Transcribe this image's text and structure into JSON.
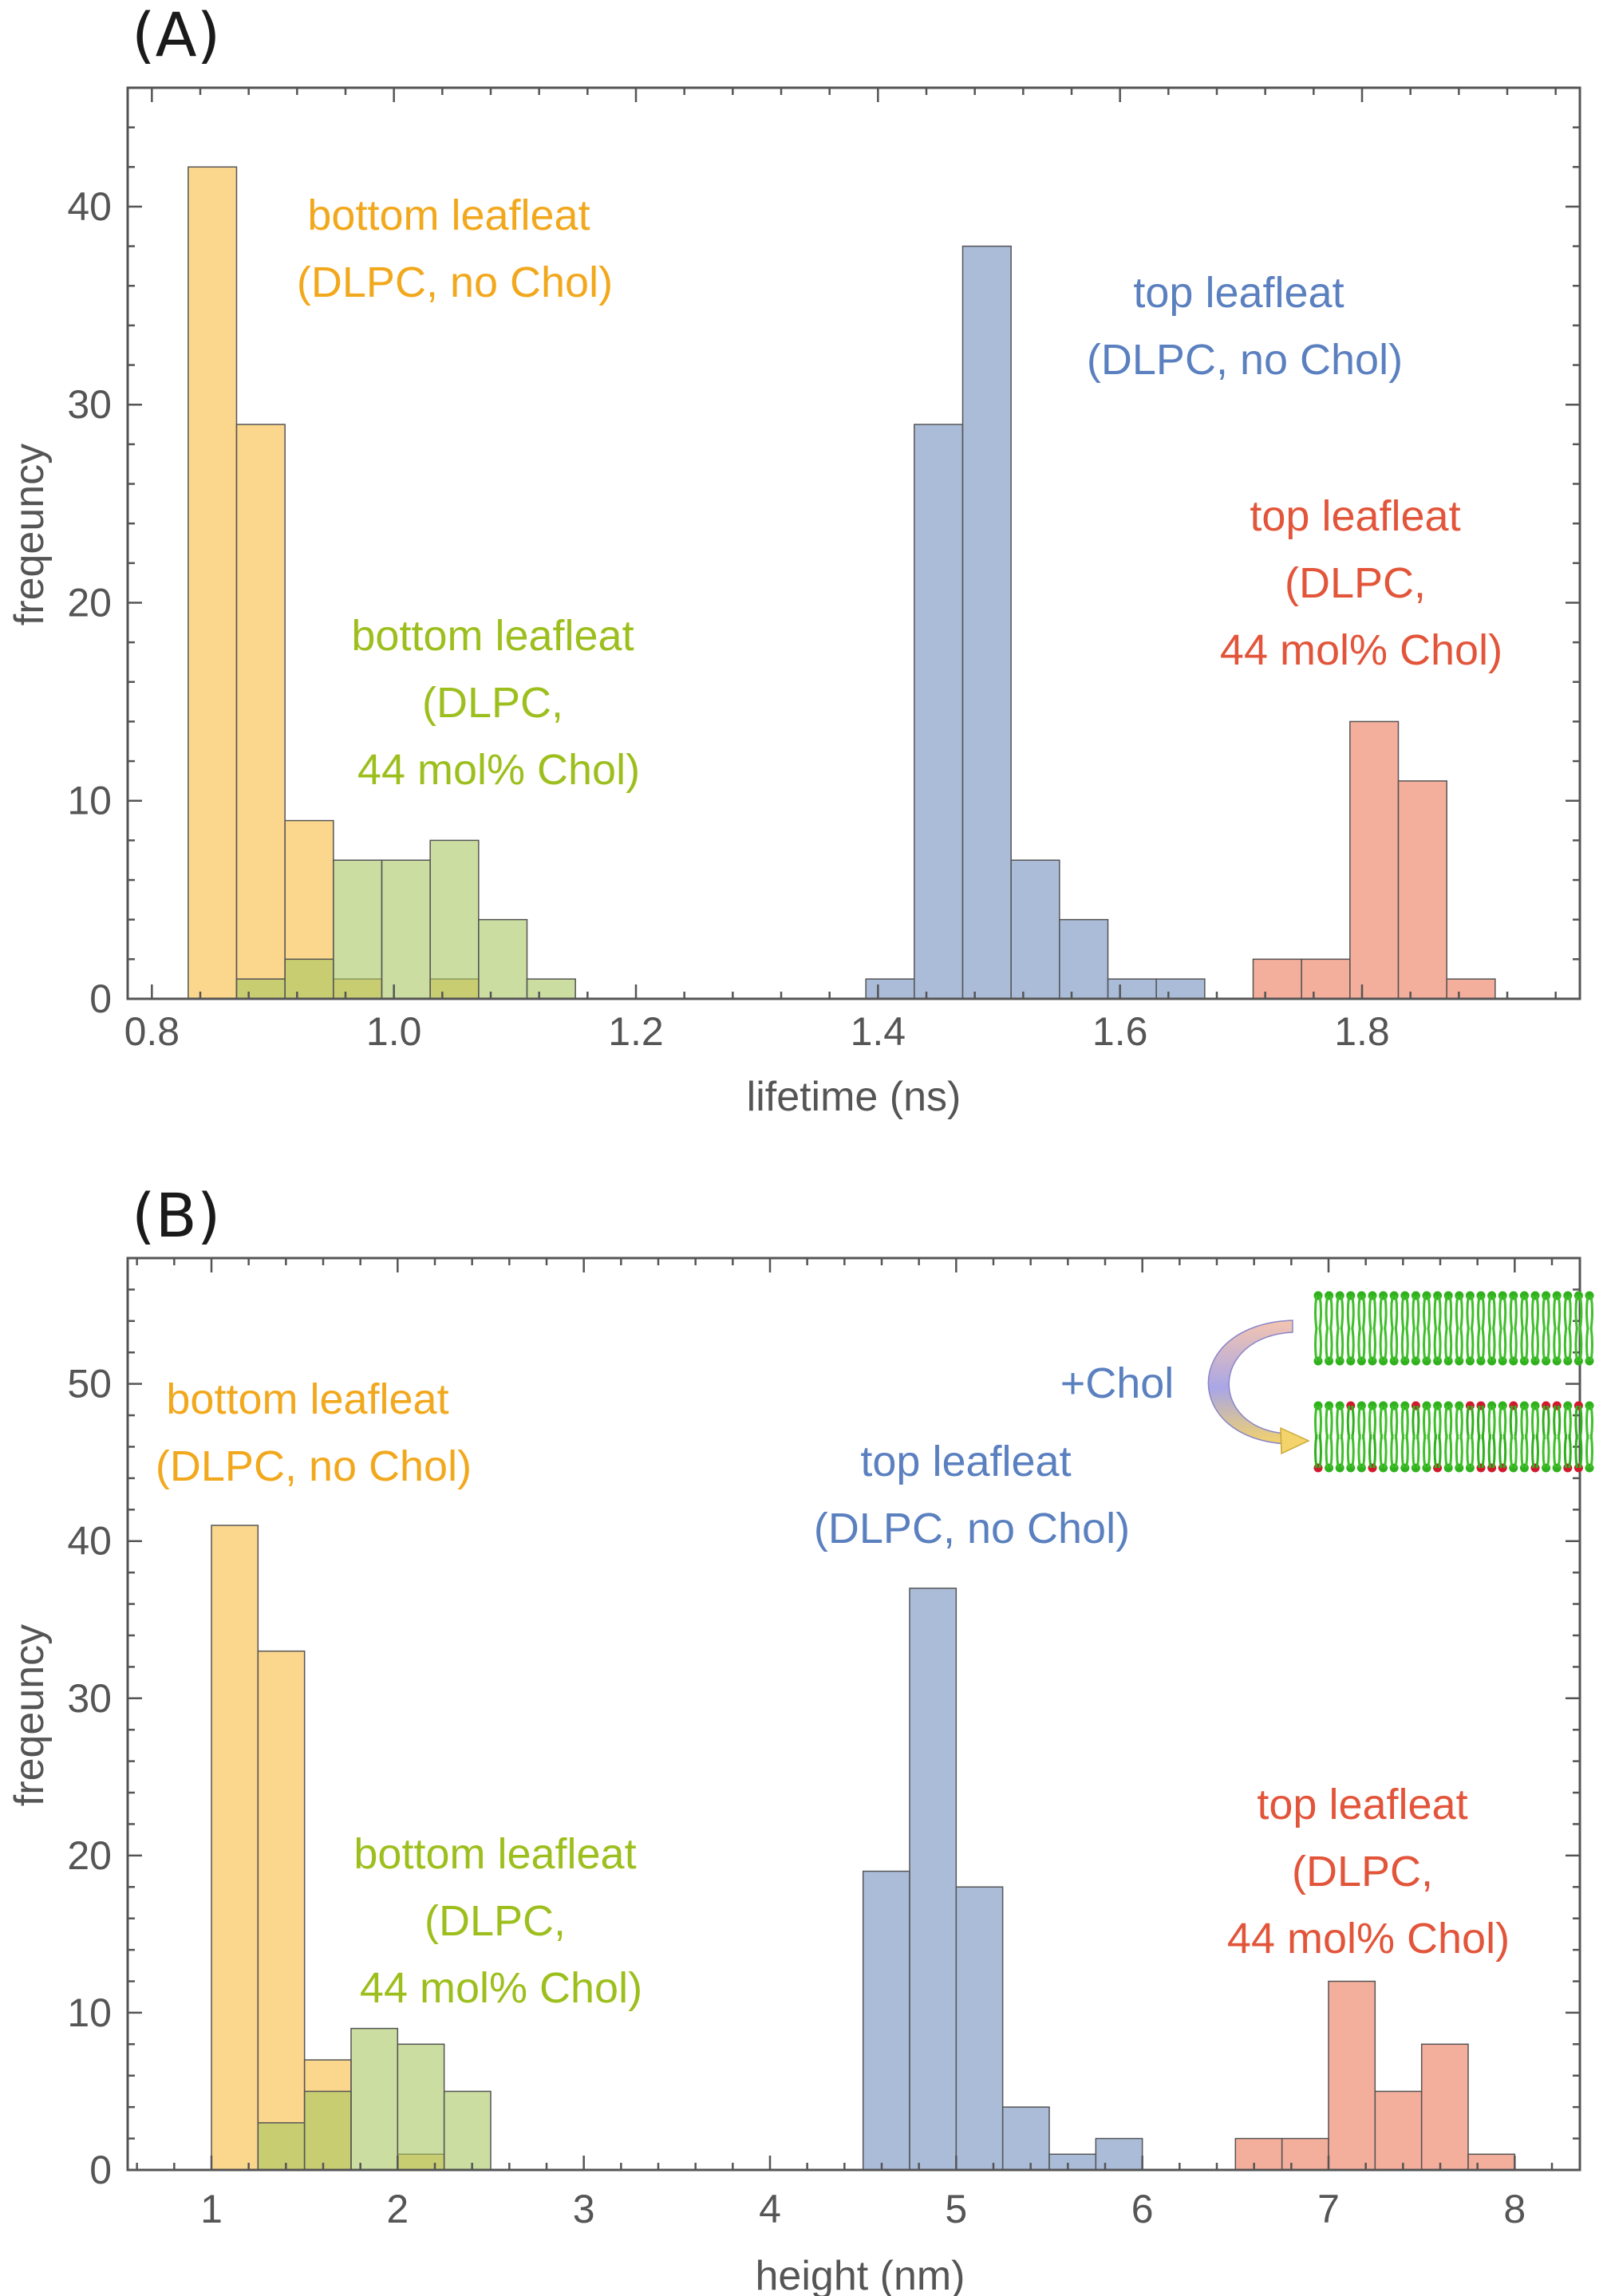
{
  "colors": {
    "orange": "#F9C45C",
    "green": "#A8C660",
    "blue": "#8EA5CB",
    "red": "#F08C72",
    "orange_text": "#F2A81D",
    "green_text": "#9DBF1D",
    "blue_text": "#5B80C0",
    "red_text": "#E2553A",
    "axis": "#555555"
  },
  "chart_data": [
    {
      "panel_label": "(A)",
      "type": "histogram",
      "xlabel": "lifetime (ns)",
      "ylabel": "freqeuncy",
      "xlim": [
        0.78,
        1.98
      ],
      "ylim": [
        0,
        46
      ],
      "xticks": [
        0.8,
        1.0,
        1.2,
        1.4,
        1.6,
        1.8
      ],
      "xtick_labels": [
        "0.8",
        "1.0",
        "1.2",
        "1.4",
        "1.6",
        "1.8"
      ],
      "yticks": [
        0,
        10,
        20,
        30,
        40
      ],
      "ytick_labels": [
        "0",
        "10",
        "20",
        "30",
        "40"
      ],
      "bin_width": 0.04,
      "series": [
        {
          "color": "orange",
          "bins": [
            [
              0.83,
              42
            ],
            [
              0.87,
              29
            ],
            [
              0.91,
              9
            ],
            [
              0.95,
              1
            ],
            [
              1.03,
              1
            ]
          ]
        },
        {
          "color": "green",
          "bins": [
            [
              0.87,
              1
            ],
            [
              0.91,
              2
            ],
            [
              0.95,
              7
            ],
            [
              0.99,
              7
            ],
            [
              1.03,
              8
            ],
            [
              1.07,
              4
            ],
            [
              1.11,
              1
            ]
          ]
        },
        {
          "color": "blue",
          "bins": [
            [
              1.39,
              1
            ],
            [
              1.43,
              29
            ],
            [
              1.47,
              38
            ],
            [
              1.51,
              7
            ],
            [
              1.55,
              4
            ],
            [
              1.59,
              1
            ],
            [
              1.63,
              1
            ]
          ]
        },
        {
          "color": "red",
          "bins": [
            [
              1.71,
              2
            ],
            [
              1.75,
              2
            ],
            [
              1.79,
              14
            ],
            [
              1.83,
              11
            ],
            [
              1.87,
              1
            ]
          ]
        }
      ],
      "annotations": [
        {
          "color": "orange_text",
          "lines": [
            "bottom leafleat",
            "(DLPC, no Chol)"
          ]
        },
        {
          "color": "blue_text",
          "lines": [
            "top leafleat",
            "(DLPC, no Chol)"
          ]
        },
        {
          "color": "red_text",
          "lines": [
            "top leafleat",
            "(DLPC,",
            "44 mol% Chol)"
          ]
        },
        {
          "color": "green_text",
          "lines": [
            "bottom leafleat",
            "(DLPC,",
            "44 mol% Chol)"
          ]
        }
      ]
    },
    {
      "panel_label": "(B)",
      "type": "histogram",
      "xlabel": "height (nm)",
      "ylabel": "freqeuncy",
      "xlim": [
        0.55,
        8.35
      ],
      "ylim": [
        0,
        58
      ],
      "xticks": [
        1,
        2,
        3,
        4,
        5,
        6,
        7,
        8
      ],
      "xtick_labels": [
        "1",
        "2",
        "3",
        "4",
        "5",
        "6",
        "7",
        "8"
      ],
      "yticks": [
        0,
        10,
        20,
        30,
        40,
        50
      ],
      "ytick_labels": [
        "0",
        "10",
        "20",
        "30",
        "40",
        "50"
      ],
      "bin_width": 0.25,
      "series": [
        {
          "color": "orange",
          "bins": [
            [
              1.0,
              41
            ],
            [
              1.25,
              33
            ],
            [
              1.5,
              7
            ],
            [
              2.0,
              1
            ]
          ]
        },
        {
          "color": "green",
          "bins": [
            [
              1.25,
              3
            ],
            [
              1.5,
              5
            ],
            [
              1.75,
              9
            ],
            [
              2.0,
              8
            ],
            [
              2.25,
              5
            ]
          ]
        },
        {
          "color": "blue",
          "bins": [
            [
              4.5,
              19
            ],
            [
              4.75,
              37
            ],
            [
              5.0,
              18
            ],
            [
              5.25,
              4
            ],
            [
              5.5,
              1
            ],
            [
              5.75,
              2
            ]
          ]
        },
        {
          "color": "red",
          "bins": [
            [
              6.5,
              2
            ],
            [
              6.75,
              2
            ],
            [
              7.0,
              12
            ],
            [
              7.25,
              5
            ],
            [
              7.5,
              8
            ],
            [
              7.75,
              1
            ]
          ]
        }
      ],
      "annotations": [
        {
          "color": "orange_text",
          "lines": [
            "bottom leafleat",
            "(DLPC, no Chol)"
          ]
        },
        {
          "color": "blue_text",
          "lines": [
            "top leafleat",
            "(DLPC, no Chol)"
          ]
        },
        {
          "color": "red_text",
          "lines": [
            "top leafleat",
            "(DLPC,",
            "44 mol% Chol)"
          ]
        },
        {
          "color": "green_text",
          "lines": [
            "bottom leafleat",
            "(DLPC,",
            "44 mol% Chol)"
          ]
        }
      ],
      "inset": {
        "label": "+Chol",
        "label_color": "blue_text"
      }
    }
  ]
}
